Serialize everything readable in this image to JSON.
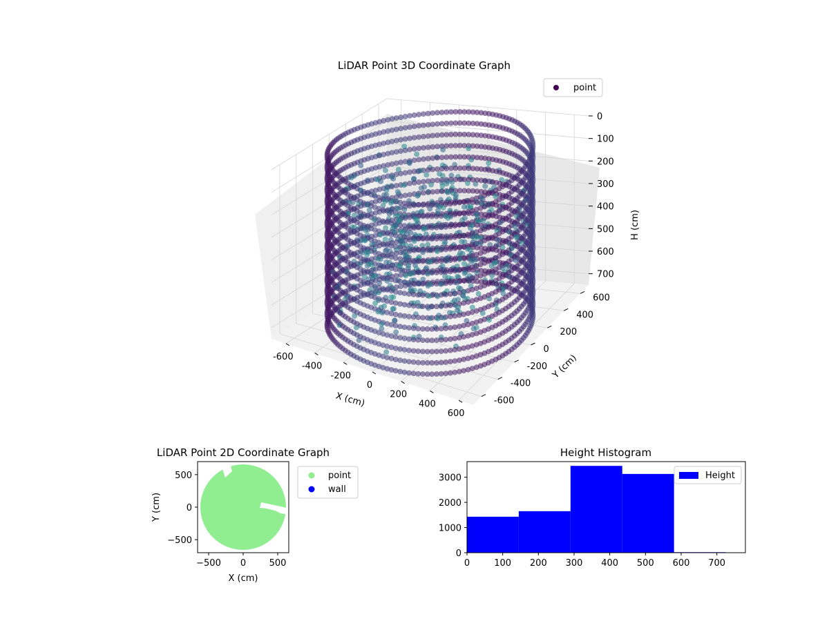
{
  "chart_data": [
    {
      "type": "scatter",
      "projection": "3d",
      "title": "LiDAR Point 3D Coordinate Graph",
      "xlabel": "X (cm)",
      "ylabel": "Y (cm)",
      "zlabel": "H (cm)",
      "xlim": [
        -700,
        700
      ],
      "ylim": [
        -700,
        700
      ],
      "zlim": [
        0,
        750
      ],
      "z_inverted": true,
      "xticks": [
        -600,
        -400,
        -200,
        0,
        200,
        400,
        600
      ],
      "yticks": [
        -600,
        -400,
        -200,
        0,
        200,
        400,
        600
      ],
      "zticks": [
        0,
        100,
        200,
        300,
        400,
        500,
        600,
        700
      ],
      "colormap": "viridis",
      "legend": {
        "position": "upper-right",
        "entries": [
          {
            "label": "point",
            "color": "#440154"
          }
        ]
      },
      "description": "Cylindrical wall of points radius ~620 cm, heights 0-750 cm, plus scattered interior points"
    },
    {
      "type": "scatter",
      "title": "LiDAR Point 2D Coordinate Graph",
      "xlabel": "X (cm)",
      "ylabel": "Y (cm)",
      "xlim": [
        -660,
        660
      ],
      "ylim": [
        -700,
        700
      ],
      "xticks": [
        -500,
        0,
        500
      ],
      "yticks": [
        -500,
        0,
        500
      ],
      "series": [
        {
          "name": "point",
          "color": "#90ee90"
        },
        {
          "name": "wall",
          "color": "#0000ff"
        }
      ],
      "legend": {
        "position": "outside-right"
      }
    },
    {
      "type": "bar",
      "title": "Height Histogram",
      "bin_edges": [
        0,
        145,
        290,
        435,
        580,
        725
      ],
      "values": [
        1430,
        1650,
        3450,
        3130,
        20
      ],
      "color": "#0000ff",
      "xlim": [
        0,
        780
      ],
      "ylim": [
        0,
        3620
      ],
      "xticks": [
        0,
        100,
        200,
        300,
        400,
        500,
        600,
        700
      ],
      "yticks": [
        0,
        1000,
        2000,
        3000
      ],
      "series": [
        {
          "name": "Height"
        }
      ],
      "legend": {
        "position": "upper-right"
      }
    }
  ]
}
